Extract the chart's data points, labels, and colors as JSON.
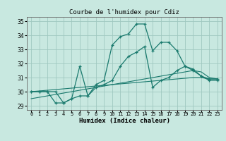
{
  "title": "Courbe de l'humidex pour Cdiz",
  "xlabel": "Humidex (Indice chaleur)",
  "xlim": [
    -0.5,
    23.5
  ],
  "ylim": [
    28.7,
    35.3
  ],
  "yticks": [
    29,
    30,
    31,
    32,
    33,
    34,
    35
  ],
  "xtick_labels": [
    "0",
    "1",
    "2",
    "3",
    "4",
    "5",
    "6",
    "7",
    "8",
    "9",
    "10",
    "11",
    "12",
    "13",
    "14",
    "15",
    "16",
    "17",
    "18",
    "19",
    "20",
    "21",
    "22",
    "23"
  ],
  "bg_color": "#c8e8e0",
  "grid_color": "#a0c8c0",
  "line_color": "#1a7a6e",
  "line1": [
    30.0,
    30.0,
    30.0,
    30.0,
    29.2,
    29.5,
    31.8,
    29.7,
    30.5,
    30.8,
    33.3,
    33.9,
    34.1,
    34.8,
    34.8,
    32.9,
    33.5,
    33.5,
    32.9,
    31.8,
    31.6,
    31.1,
    30.9,
    30.9
  ],
  "line2": [
    30.0,
    30.0,
    30.0,
    29.2,
    29.2,
    29.5,
    29.7,
    29.7,
    30.3,
    30.5,
    30.8,
    31.8,
    32.5,
    32.8,
    33.2,
    30.3,
    30.8,
    31.0,
    31.5,
    31.8,
    31.5,
    31.1,
    30.8,
    30.8
  ],
  "line3": [
    30.0,
    30.05,
    30.1,
    30.15,
    30.2,
    30.25,
    30.3,
    30.35,
    30.4,
    30.45,
    30.5,
    30.55,
    30.6,
    30.65,
    30.7,
    30.75,
    30.8,
    30.85,
    30.9,
    30.95,
    31.0,
    31.0,
    30.9,
    30.9
  ],
  "line4": [
    29.5,
    29.6,
    29.7,
    29.8,
    29.9,
    30.0,
    30.1,
    30.2,
    30.3,
    30.4,
    30.5,
    30.6,
    30.7,
    30.8,
    30.9,
    31.0,
    31.1,
    31.2,
    31.3,
    31.4,
    31.5,
    31.4,
    31.0,
    30.9
  ]
}
